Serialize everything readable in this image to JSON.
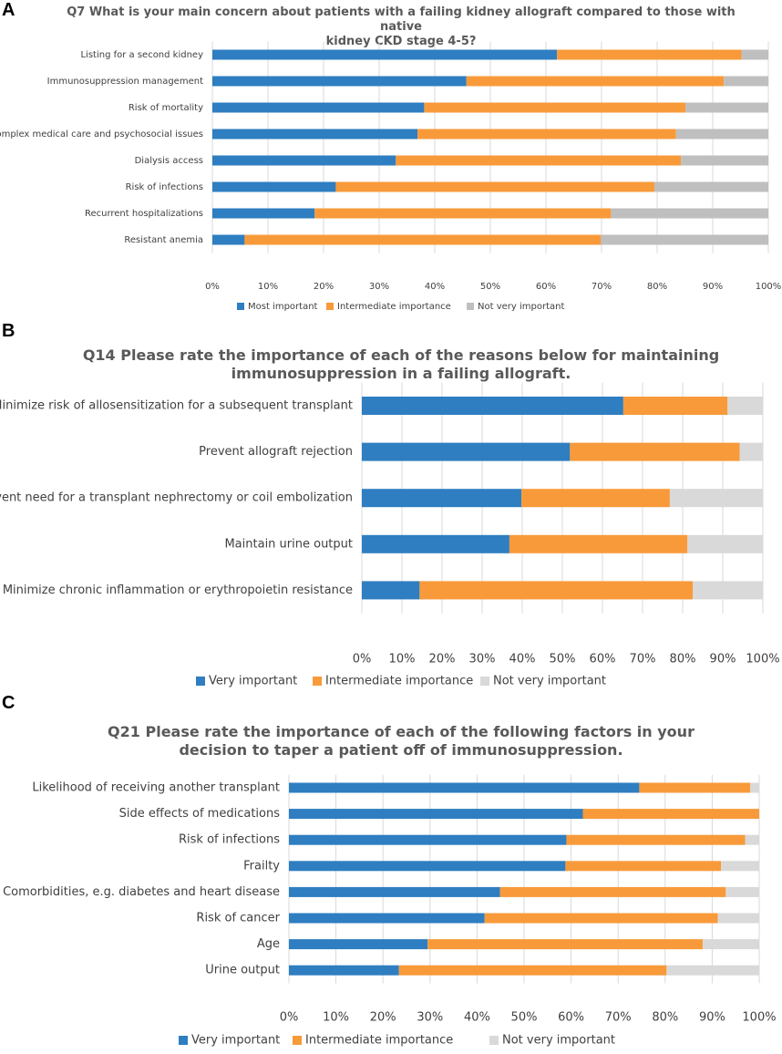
{
  "panels": [
    {
      "letter": "A",
      "title_lines": [
        "Q7 What is your main concern about patients with a failing kidney allograft compared to those with native",
        "kidney CKD stage 4-5?"
      ]
    },
    {
      "letter": "B",
      "title_lines": [
        "Q14 Please rate the importance of each of the reasons below for maintaining",
        "immunosuppression in a failing allograft."
      ]
    },
    {
      "letter": "C",
      "title_lines": [
        "Q21 Please rate the importance of each of the following factors in your",
        "decision to taper a patient off of immunosuppression."
      ]
    }
  ],
  "colors": {
    "most": "#2E7EC1",
    "intermediate": "#F89A3A",
    "not_very_a": "#BFBFBF",
    "not_very": "#D9D9D9",
    "grid": "#D9D9D9",
    "title": "#595959"
  },
  "chart_data": [
    {
      "type": "bar",
      "orientation": "horizontal",
      "stacked": true,
      "title": "Q7 What is your main concern about patients with a failing kidney allograft compared to those with native kidney CKD stage 4-5?",
      "categories": [
        "Listing for a second kidney",
        "Immunosuppression management",
        "Risk of mortality",
        "Complex medical care and psychosocial issues",
        "Dialysis access",
        "Risk of infections",
        "Recurrent hospitalizations",
        "Resistant anemia"
      ],
      "series": [
        {
          "name": "Most important",
          "values": [
            62,
            45.7,
            38.1,
            36.9,
            33,
            22.2,
            18.4,
            5.8
          ]
        },
        {
          "name": "Intermediate importance",
          "values": [
            33.2,
            46.3,
            47,
            46.5,
            51.3,
            57.3,
            53.3,
            64.1
          ]
        },
        {
          "name": "Not very important",
          "values": [
            4.8,
            8,
            14.9,
            16.6,
            15.7,
            20.5,
            28.3,
            30.1
          ]
        }
      ],
      "xlim": [
        0,
        100
      ],
      "x_ticks": [
        "0%",
        "10%",
        "20%",
        "30%",
        "40%",
        "50%",
        "60%",
        "70%",
        "80%",
        "90%",
        "100%"
      ],
      "legend": "bottom",
      "grid": true
    },
    {
      "type": "bar",
      "orientation": "horizontal",
      "stacked": true,
      "title": "Q14 Please rate the importance of each of the reasons below for maintaining immunosuppression in a failing allograft.",
      "categories": [
        "Minimize risk of allosensitization for a subsequent transplant",
        "Prevent allograft rejection",
        "Prevent need for a transplant nephrectomy or coil embolization",
        "Maintain urine output",
        "Minimize chronic inflammation or erythropoietin resistance"
      ],
      "series": [
        {
          "name": "Very important",
          "values": [
            65.2,
            51.9,
            39.8,
            36.8,
            14.4
          ]
        },
        {
          "name": "Intermediate importance",
          "values": [
            26,
            42.3,
            37,
            44.4,
            68.1
          ]
        },
        {
          "name": "Not very important",
          "values": [
            8.8,
            5.8,
            23.2,
            18.8,
            17.5
          ]
        }
      ],
      "xlim": [
        0,
        100
      ],
      "x_ticks": [
        "0%",
        "10%",
        "20%",
        "30%",
        "40%",
        "50%",
        "60%",
        "70%",
        "80%",
        "90%",
        "100%"
      ],
      "legend": "bottom",
      "grid": true
    },
    {
      "type": "bar",
      "orientation": "horizontal",
      "stacked": true,
      "title": "Q21 Please rate the importance of each of the following factors in your decision to taper a patient off of immunosuppression.",
      "categories": [
        "Likelihood of receiving another transplant",
        "Side effects of medications",
        "Risk of infections",
        "Frailty",
        "Comorbidities, e.g. diabetes and heart disease",
        "Risk of cancer",
        "Age",
        "Urine output"
      ],
      "series": [
        {
          "name": "Very important",
          "values": [
            74.5,
            62.5,
            59,
            58.8,
            44.9,
            41.6,
            29.5,
            23.4
          ]
        },
        {
          "name": "Intermediate importance",
          "values": [
            23.6,
            37.5,
            38,
            33.1,
            48,
            49.6,
            58.5,
            56.9
          ]
        },
        {
          "name": "Not very important",
          "values": [
            1.9,
            0,
            3,
            8.1,
            7.1,
            8.8,
            12,
            19.7
          ]
        }
      ],
      "xlim": [
        0,
        100
      ],
      "x_ticks": [
        "0%",
        "10%",
        "20%",
        "30%",
        "40%",
        "50%",
        "60%",
        "70%",
        "80%",
        "90%",
        "100%"
      ],
      "legend": "bottom",
      "grid": true
    }
  ]
}
